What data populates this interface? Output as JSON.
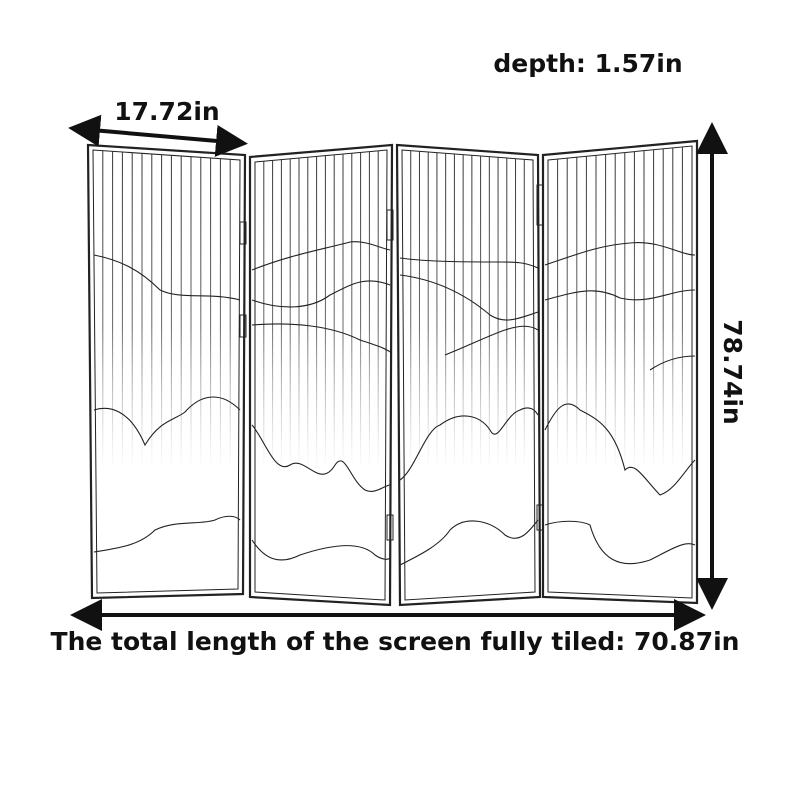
{
  "depth_label": "depth: 1.57in",
  "panel_width_label": "17.72in",
  "height_label": "78.74in",
  "total_length_label": "The total length of the screen fully tiled: 70.87in"
}
